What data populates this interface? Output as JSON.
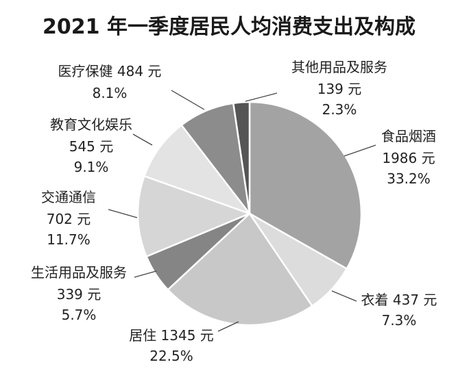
{
  "chart_data": {
    "type": "pie",
    "title": "2021 年一季度居民人均消费支出及构成",
    "slices": [
      {
        "name": "食品烟酒",
        "value": 1986,
        "value_label": "1986 元",
        "percent": 33.2,
        "percent_label": "33.2%",
        "color": "#a3a3a3"
      },
      {
        "name": "衣着",
        "value": 437,
        "value_label": "衣着 437 元",
        "percent": 7.3,
        "percent_label": "7.3%",
        "color": "#dcdcdc"
      },
      {
        "name": "居住",
        "value": 1345,
        "value_label": "居住 1345 元",
        "percent": 22.5,
        "percent_label": "22.5%",
        "color": "#c8c8c8"
      },
      {
        "name": "生活用品及服务",
        "value": 339,
        "value_label": "339 元",
        "percent": 5.7,
        "percent_label": "5.7%",
        "color": "#858585"
      },
      {
        "name": "交通通信",
        "value": 702,
        "value_label": "702 元",
        "percent": 11.7,
        "percent_label": "11.7%",
        "color": "#d6d6d6"
      },
      {
        "name": "教育文化娱乐",
        "value": 545,
        "value_label": "545 元",
        "percent": 9.1,
        "percent_label": "9.1%",
        "color": "#e3e3e3"
      },
      {
        "name": "医疗保健",
        "value": 484,
        "value_label": "医疗保健 484 元",
        "percent": 8.1,
        "percent_label": "8.1%",
        "color": "#8c8c8c"
      },
      {
        "name": "其他用品及服务",
        "value": 139,
        "value_label": "139 元",
        "percent": 2.3,
        "percent_label": "2.3%",
        "color": "#555555"
      }
    ]
  }
}
